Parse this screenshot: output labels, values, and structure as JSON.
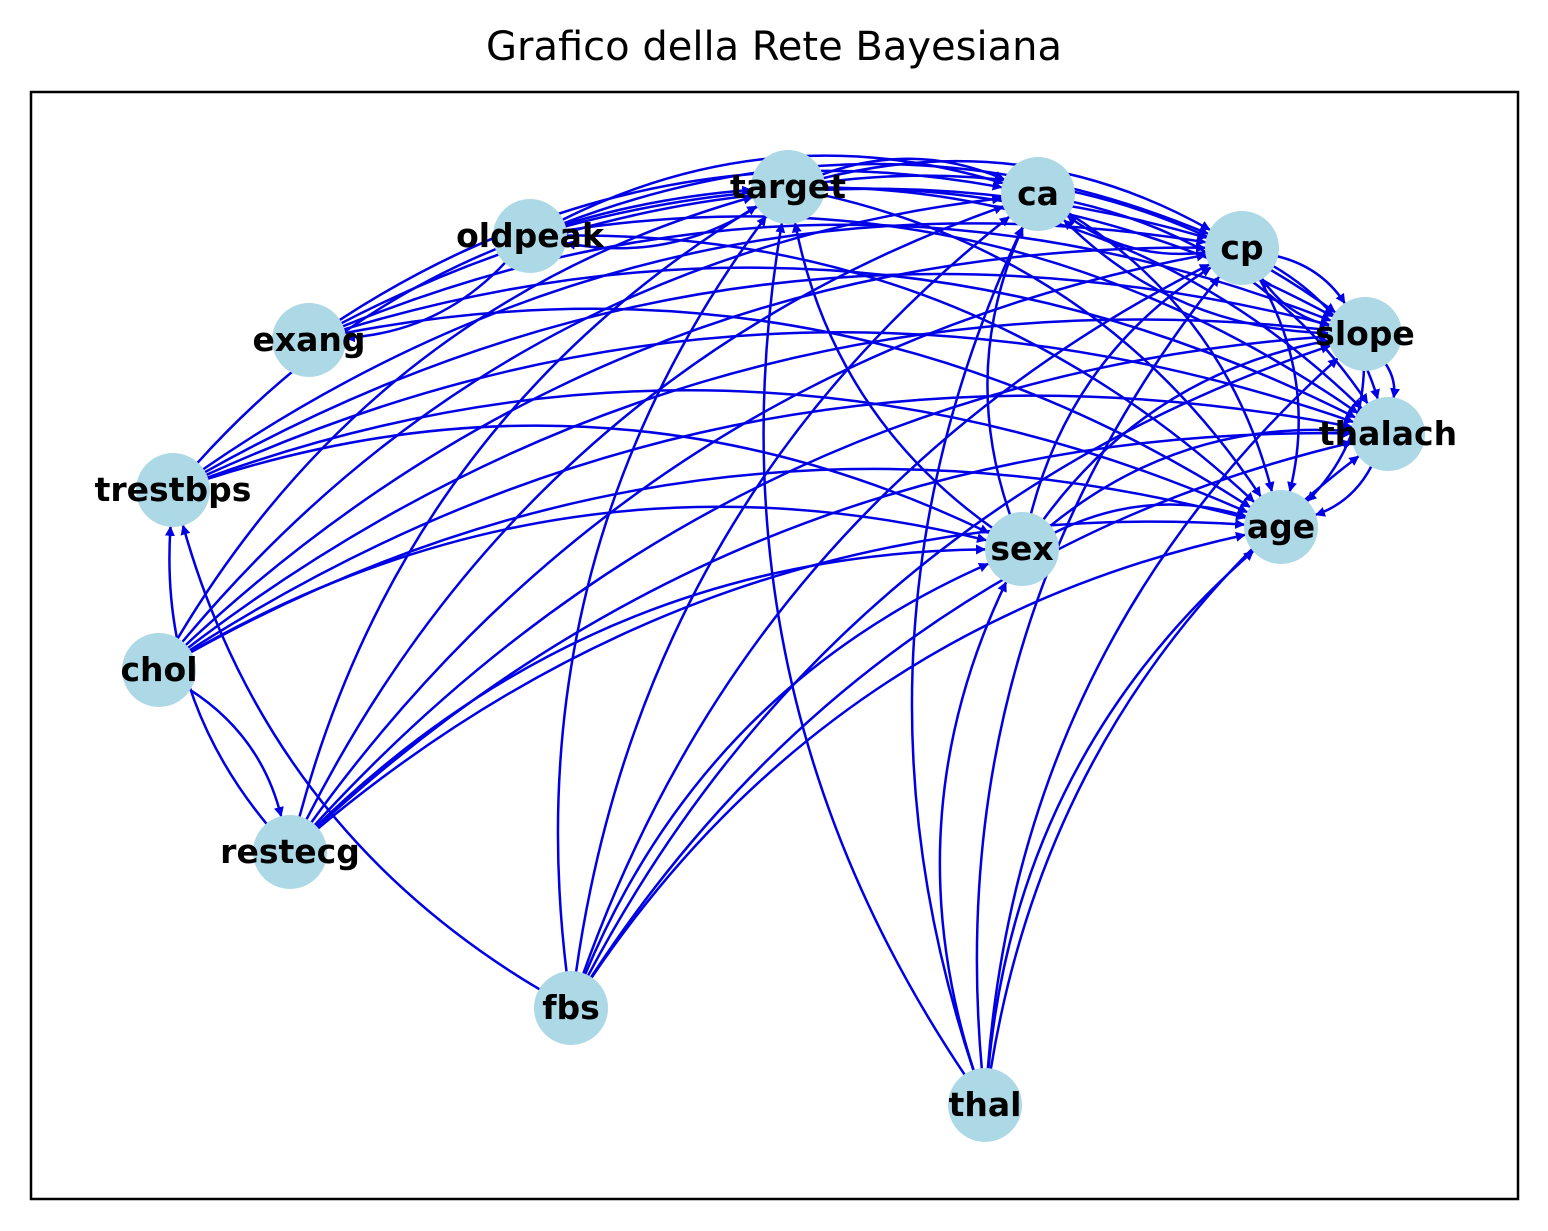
{
  "title": "Grafico della Rete Bayesiana",
  "colors": {
    "node_fill": "#add8e6",
    "edge": "#0000e6",
    "frame": "#000000"
  },
  "nodes": [
    {
      "id": "target",
      "label": "target"
    },
    {
      "id": "ca",
      "label": "ca"
    },
    {
      "id": "oldpeak",
      "label": "oldpeak"
    },
    {
      "id": "cp",
      "label": "cp"
    },
    {
      "id": "exang",
      "label": "exang"
    },
    {
      "id": "slope",
      "label": "slope"
    },
    {
      "id": "thalach",
      "label": "thalach"
    },
    {
      "id": "trestbps",
      "label": "trestbps"
    },
    {
      "id": "age",
      "label": "age"
    },
    {
      "id": "sex",
      "label": "sex"
    },
    {
      "id": "chol",
      "label": "chol"
    },
    {
      "id": "restecg",
      "label": "restecg"
    },
    {
      "id": "fbs",
      "label": "fbs"
    },
    {
      "id": "thal",
      "label": "thal"
    }
  ],
  "edges": [
    [
      "target",
      "oldpeak"
    ],
    [
      "target",
      "ca"
    ],
    [
      "target",
      "cp"
    ],
    [
      "target",
      "slope"
    ],
    [
      "target",
      "thalach"
    ],
    [
      "target",
      "age"
    ],
    [
      "oldpeak",
      "exang"
    ],
    [
      "oldpeak",
      "ca"
    ],
    [
      "oldpeak",
      "cp"
    ],
    [
      "oldpeak",
      "slope"
    ],
    [
      "oldpeak",
      "thalach"
    ],
    [
      "oldpeak",
      "age"
    ],
    [
      "cp",
      "ca"
    ],
    [
      "cp",
      "slope"
    ],
    [
      "cp",
      "thalach"
    ],
    [
      "cp",
      "age"
    ],
    [
      "slope",
      "cp"
    ],
    [
      "slope",
      "ca"
    ],
    [
      "slope",
      "thalach"
    ],
    [
      "slope",
      "age"
    ],
    [
      "ca",
      "thalach"
    ],
    [
      "ca",
      "age"
    ],
    [
      "thalach",
      "age"
    ],
    [
      "exang",
      "ca"
    ],
    [
      "exang",
      "cp"
    ],
    [
      "exang",
      "slope"
    ],
    [
      "exang",
      "thalach"
    ],
    [
      "exang",
      "age"
    ],
    [
      "trestbps",
      "target"
    ],
    [
      "trestbps",
      "cp"
    ],
    [
      "trestbps",
      "slope"
    ],
    [
      "trestbps",
      "thalach"
    ],
    [
      "trestbps",
      "age"
    ],
    [
      "trestbps",
      "sex"
    ],
    [
      "sex",
      "target"
    ],
    [
      "sex",
      "ca"
    ],
    [
      "sex",
      "cp"
    ],
    [
      "sex",
      "slope"
    ],
    [
      "sex",
      "thalach"
    ],
    [
      "sex",
      "age"
    ],
    [
      "chol",
      "target"
    ],
    [
      "chol",
      "ca"
    ],
    [
      "chol",
      "cp"
    ],
    [
      "chol",
      "slope"
    ],
    [
      "chol",
      "thalach"
    ],
    [
      "chol",
      "age"
    ],
    [
      "chol",
      "sex"
    ],
    [
      "chol",
      "restecg"
    ],
    [
      "restecg",
      "trestbps"
    ],
    [
      "restecg",
      "target"
    ],
    [
      "restecg",
      "ca"
    ],
    [
      "restecg",
      "cp"
    ],
    [
      "restecg",
      "slope"
    ],
    [
      "restecg",
      "thalach"
    ],
    [
      "restecg",
      "age"
    ],
    [
      "restecg",
      "sex"
    ],
    [
      "fbs",
      "trestbps"
    ],
    [
      "fbs",
      "target"
    ],
    [
      "fbs",
      "ca"
    ],
    [
      "fbs",
      "cp"
    ],
    [
      "fbs",
      "slope"
    ],
    [
      "fbs",
      "thalach"
    ],
    [
      "fbs",
      "age"
    ],
    [
      "fbs",
      "sex"
    ],
    [
      "thal",
      "target"
    ],
    [
      "thal",
      "ca"
    ],
    [
      "thal",
      "cp"
    ],
    [
      "thal",
      "slope"
    ],
    [
      "thal",
      "thalach"
    ],
    [
      "thal",
      "age"
    ],
    [
      "thal",
      "sex"
    ]
  ]
}
